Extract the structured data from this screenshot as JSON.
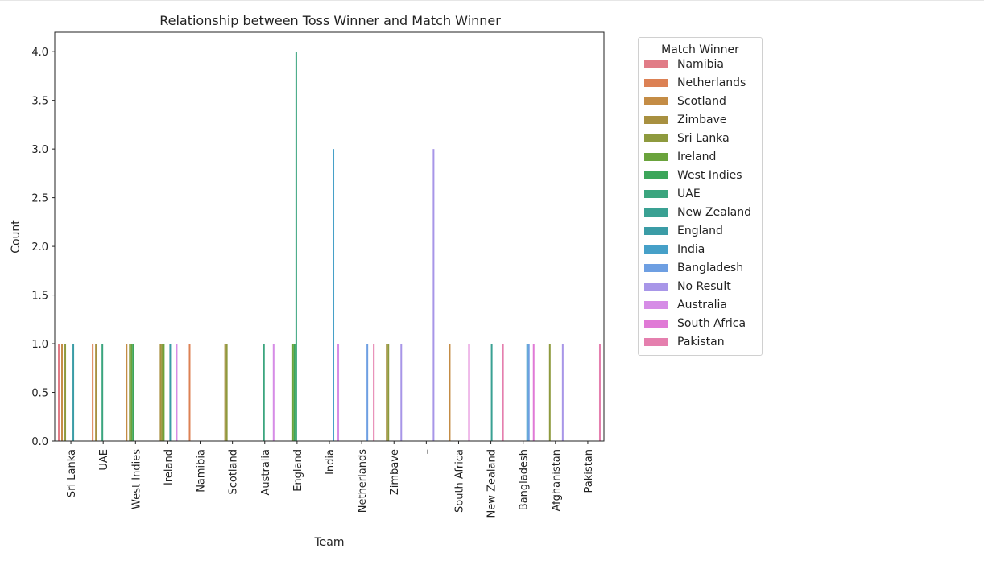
{
  "chart_data": {
    "type": "bar",
    "title": "Relationship between Toss Winner and Match Winner",
    "xlabel": "Team",
    "ylabel": "Count",
    "ylim": [
      0,
      4.2
    ],
    "yticks": [
      "0.0",
      "0.5",
      "1.0",
      "1.5",
      "2.0",
      "2.5",
      "3.0",
      "3.5",
      "4.0"
    ],
    "legend_title": "Match Winner",
    "legend_position": "outside-right",
    "categories": [
      "Sri Lanka",
      "UAE",
      "West Indies",
      "Ireland",
      "Namibia",
      "Scotland",
      "Australia",
      "England",
      "India",
      "Netherlands",
      "Zimbave",
      "–",
      "South Africa",
      "New Zealand",
      "Bangladesh",
      "Afghanistan",
      "Pakistan"
    ],
    "series": [
      {
        "name": "Namibia",
        "color": "#e17c87",
        "values": [
          1,
          0,
          0,
          0,
          0,
          0,
          0,
          0,
          0,
          0,
          0,
          0,
          0,
          0,
          0,
          0,
          0
        ]
      },
      {
        "name": "Netherlands",
        "color": "#dc8154",
        "values": [
          0,
          1,
          0,
          0,
          1,
          0,
          0,
          0,
          0,
          0,
          0,
          0,
          0,
          0,
          0,
          0,
          0
        ]
      },
      {
        "name": "Scotland",
        "color": "#c48c45",
        "values": [
          1,
          0,
          1,
          0,
          0,
          0,
          0,
          0,
          0,
          0,
          0,
          0,
          1,
          0,
          0,
          0,
          0
        ]
      },
      {
        "name": "Zimbave",
        "color": "#a89040",
        "values": [
          0,
          1,
          0,
          1,
          0,
          1,
          0,
          0,
          0,
          0,
          1,
          0,
          0,
          0,
          0,
          0,
          0
        ]
      },
      {
        "name": "Sri Lanka",
        "color": "#8e9a3e",
        "values": [
          1,
          0,
          1,
          1,
          0,
          1,
          0,
          0,
          0,
          0,
          1,
          0,
          0,
          0,
          0,
          1,
          0
        ]
      },
      {
        "name": "Ireland",
        "color": "#6aa33c",
        "values": [
          0,
          0,
          1,
          1,
          0,
          0,
          0,
          1,
          0,
          0,
          0,
          0,
          0,
          0,
          0,
          0,
          0
        ]
      },
      {
        "name": "West Indies",
        "color": "#3ca65a",
        "values": [
          0,
          0,
          1,
          0,
          0,
          0,
          0,
          1,
          0,
          0,
          0,
          0,
          0,
          0,
          0,
          0,
          0
        ]
      },
      {
        "name": "UAE",
        "color": "#3ba57e",
        "values": [
          0,
          1,
          0,
          0,
          0,
          0,
          1,
          4,
          0,
          0,
          0,
          0,
          0,
          0,
          0,
          0,
          0
        ]
      },
      {
        "name": "New Zealand",
        "color": "#3aa193",
        "values": [
          0,
          0,
          0,
          0,
          0,
          0,
          0,
          0,
          0,
          0,
          0,
          0,
          0,
          1,
          0,
          0,
          0
        ]
      },
      {
        "name": "England",
        "color": "#3b9ca6",
        "values": [
          1,
          0,
          0,
          1,
          0,
          0,
          0,
          0,
          0,
          0,
          0,
          0,
          0,
          0,
          0,
          0,
          0
        ]
      },
      {
        "name": "India",
        "color": "#46a0c8",
        "values": [
          0,
          0,
          0,
          0,
          0,
          0,
          0,
          0,
          3,
          0,
          0,
          0,
          0,
          0,
          1,
          0,
          0
        ]
      },
      {
        "name": "Bangladesh",
        "color": "#6e9fe2",
        "values": [
          0,
          0,
          0,
          0,
          0,
          0,
          0,
          0,
          0,
          1,
          0,
          0,
          0,
          0,
          1,
          0,
          0
        ]
      },
      {
        "name": "No Result",
        "color": "#a896e8",
        "values": [
          0,
          0,
          0,
          0,
          0,
          0,
          0,
          0,
          0,
          0,
          1,
          3,
          0,
          0,
          0,
          1,
          0
        ]
      },
      {
        "name": "Australia",
        "color": "#d68ce6",
        "values": [
          0,
          0,
          0,
          1,
          0,
          0,
          1,
          0,
          1,
          0,
          0,
          0,
          0,
          0,
          0,
          0,
          0
        ]
      },
      {
        "name": "South Africa",
        "color": "#e07ad6",
        "values": [
          0,
          0,
          0,
          0,
          0,
          0,
          0,
          0,
          0,
          0,
          0,
          0,
          1,
          0,
          1,
          0,
          0
        ]
      },
      {
        "name": "Pakistan",
        "color": "#e57fae",
        "values": [
          0,
          0,
          0,
          0,
          0,
          0,
          0,
          0,
          0,
          1,
          0,
          0,
          0,
          1,
          0,
          0,
          1
        ]
      }
    ]
  }
}
